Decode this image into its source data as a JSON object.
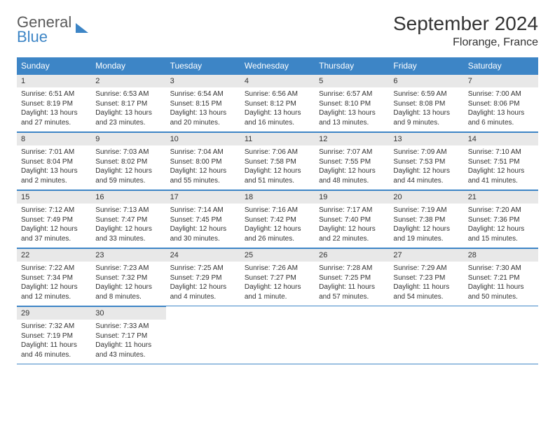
{
  "logo": {
    "line1": "General",
    "line2": "Blue"
  },
  "title": "September 2024",
  "location": "Florange, France",
  "colors": {
    "header_bg": "#3d85c6",
    "header_text": "#ffffff",
    "daynum_bg": "#e8e8e8",
    "border": "#3d85c6",
    "text": "#333333",
    "background": "#ffffff"
  },
  "fonts": {
    "title_size": 28,
    "location_size": 16,
    "header_size": 12,
    "daynum_size": 11,
    "content_size": 10
  },
  "day_headers": [
    "Sunday",
    "Monday",
    "Tuesday",
    "Wednesday",
    "Thursday",
    "Friday",
    "Saturday"
  ],
  "weeks": [
    [
      {
        "n": "1",
        "sunrise": "6:51 AM",
        "sunset": "8:19 PM",
        "daylight": "13 hours and 27 minutes."
      },
      {
        "n": "2",
        "sunrise": "6:53 AM",
        "sunset": "8:17 PM",
        "daylight": "13 hours and 23 minutes."
      },
      {
        "n": "3",
        "sunrise": "6:54 AM",
        "sunset": "8:15 PM",
        "daylight": "13 hours and 20 minutes."
      },
      {
        "n": "4",
        "sunrise": "6:56 AM",
        "sunset": "8:12 PM",
        "daylight": "13 hours and 16 minutes."
      },
      {
        "n": "5",
        "sunrise": "6:57 AM",
        "sunset": "8:10 PM",
        "daylight": "13 hours and 13 minutes."
      },
      {
        "n": "6",
        "sunrise": "6:59 AM",
        "sunset": "8:08 PM",
        "daylight": "13 hours and 9 minutes."
      },
      {
        "n": "7",
        "sunrise": "7:00 AM",
        "sunset": "8:06 PM",
        "daylight": "13 hours and 6 minutes."
      }
    ],
    [
      {
        "n": "8",
        "sunrise": "7:01 AM",
        "sunset": "8:04 PM",
        "daylight": "13 hours and 2 minutes."
      },
      {
        "n": "9",
        "sunrise": "7:03 AM",
        "sunset": "8:02 PM",
        "daylight": "12 hours and 59 minutes."
      },
      {
        "n": "10",
        "sunrise": "7:04 AM",
        "sunset": "8:00 PM",
        "daylight": "12 hours and 55 minutes."
      },
      {
        "n": "11",
        "sunrise": "7:06 AM",
        "sunset": "7:58 PM",
        "daylight": "12 hours and 51 minutes."
      },
      {
        "n": "12",
        "sunrise": "7:07 AM",
        "sunset": "7:55 PM",
        "daylight": "12 hours and 48 minutes."
      },
      {
        "n": "13",
        "sunrise": "7:09 AM",
        "sunset": "7:53 PM",
        "daylight": "12 hours and 44 minutes."
      },
      {
        "n": "14",
        "sunrise": "7:10 AM",
        "sunset": "7:51 PM",
        "daylight": "12 hours and 41 minutes."
      }
    ],
    [
      {
        "n": "15",
        "sunrise": "7:12 AM",
        "sunset": "7:49 PM",
        "daylight": "12 hours and 37 minutes."
      },
      {
        "n": "16",
        "sunrise": "7:13 AM",
        "sunset": "7:47 PM",
        "daylight": "12 hours and 33 minutes."
      },
      {
        "n": "17",
        "sunrise": "7:14 AM",
        "sunset": "7:45 PM",
        "daylight": "12 hours and 30 minutes."
      },
      {
        "n": "18",
        "sunrise": "7:16 AM",
        "sunset": "7:42 PM",
        "daylight": "12 hours and 26 minutes."
      },
      {
        "n": "19",
        "sunrise": "7:17 AM",
        "sunset": "7:40 PM",
        "daylight": "12 hours and 22 minutes."
      },
      {
        "n": "20",
        "sunrise": "7:19 AM",
        "sunset": "7:38 PM",
        "daylight": "12 hours and 19 minutes."
      },
      {
        "n": "21",
        "sunrise": "7:20 AM",
        "sunset": "7:36 PM",
        "daylight": "12 hours and 15 minutes."
      }
    ],
    [
      {
        "n": "22",
        "sunrise": "7:22 AM",
        "sunset": "7:34 PM",
        "daylight": "12 hours and 12 minutes."
      },
      {
        "n": "23",
        "sunrise": "7:23 AM",
        "sunset": "7:32 PM",
        "daylight": "12 hours and 8 minutes."
      },
      {
        "n": "24",
        "sunrise": "7:25 AM",
        "sunset": "7:29 PM",
        "daylight": "12 hours and 4 minutes."
      },
      {
        "n": "25",
        "sunrise": "7:26 AM",
        "sunset": "7:27 PM",
        "daylight": "12 hours and 1 minute."
      },
      {
        "n": "26",
        "sunrise": "7:28 AM",
        "sunset": "7:25 PM",
        "daylight": "11 hours and 57 minutes."
      },
      {
        "n": "27",
        "sunrise": "7:29 AM",
        "sunset": "7:23 PM",
        "daylight": "11 hours and 54 minutes."
      },
      {
        "n": "28",
        "sunrise": "7:30 AM",
        "sunset": "7:21 PM",
        "daylight": "11 hours and 50 minutes."
      }
    ],
    [
      {
        "n": "29",
        "sunrise": "7:32 AM",
        "sunset": "7:19 PM",
        "daylight": "11 hours and 46 minutes."
      },
      {
        "n": "30",
        "sunrise": "7:33 AM",
        "sunset": "7:17 PM",
        "daylight": "11 hours and 43 minutes."
      },
      null,
      null,
      null,
      null,
      null
    ]
  ],
  "labels": {
    "sunrise": "Sunrise:",
    "sunset": "Sunset:",
    "daylight": "Daylight:"
  }
}
